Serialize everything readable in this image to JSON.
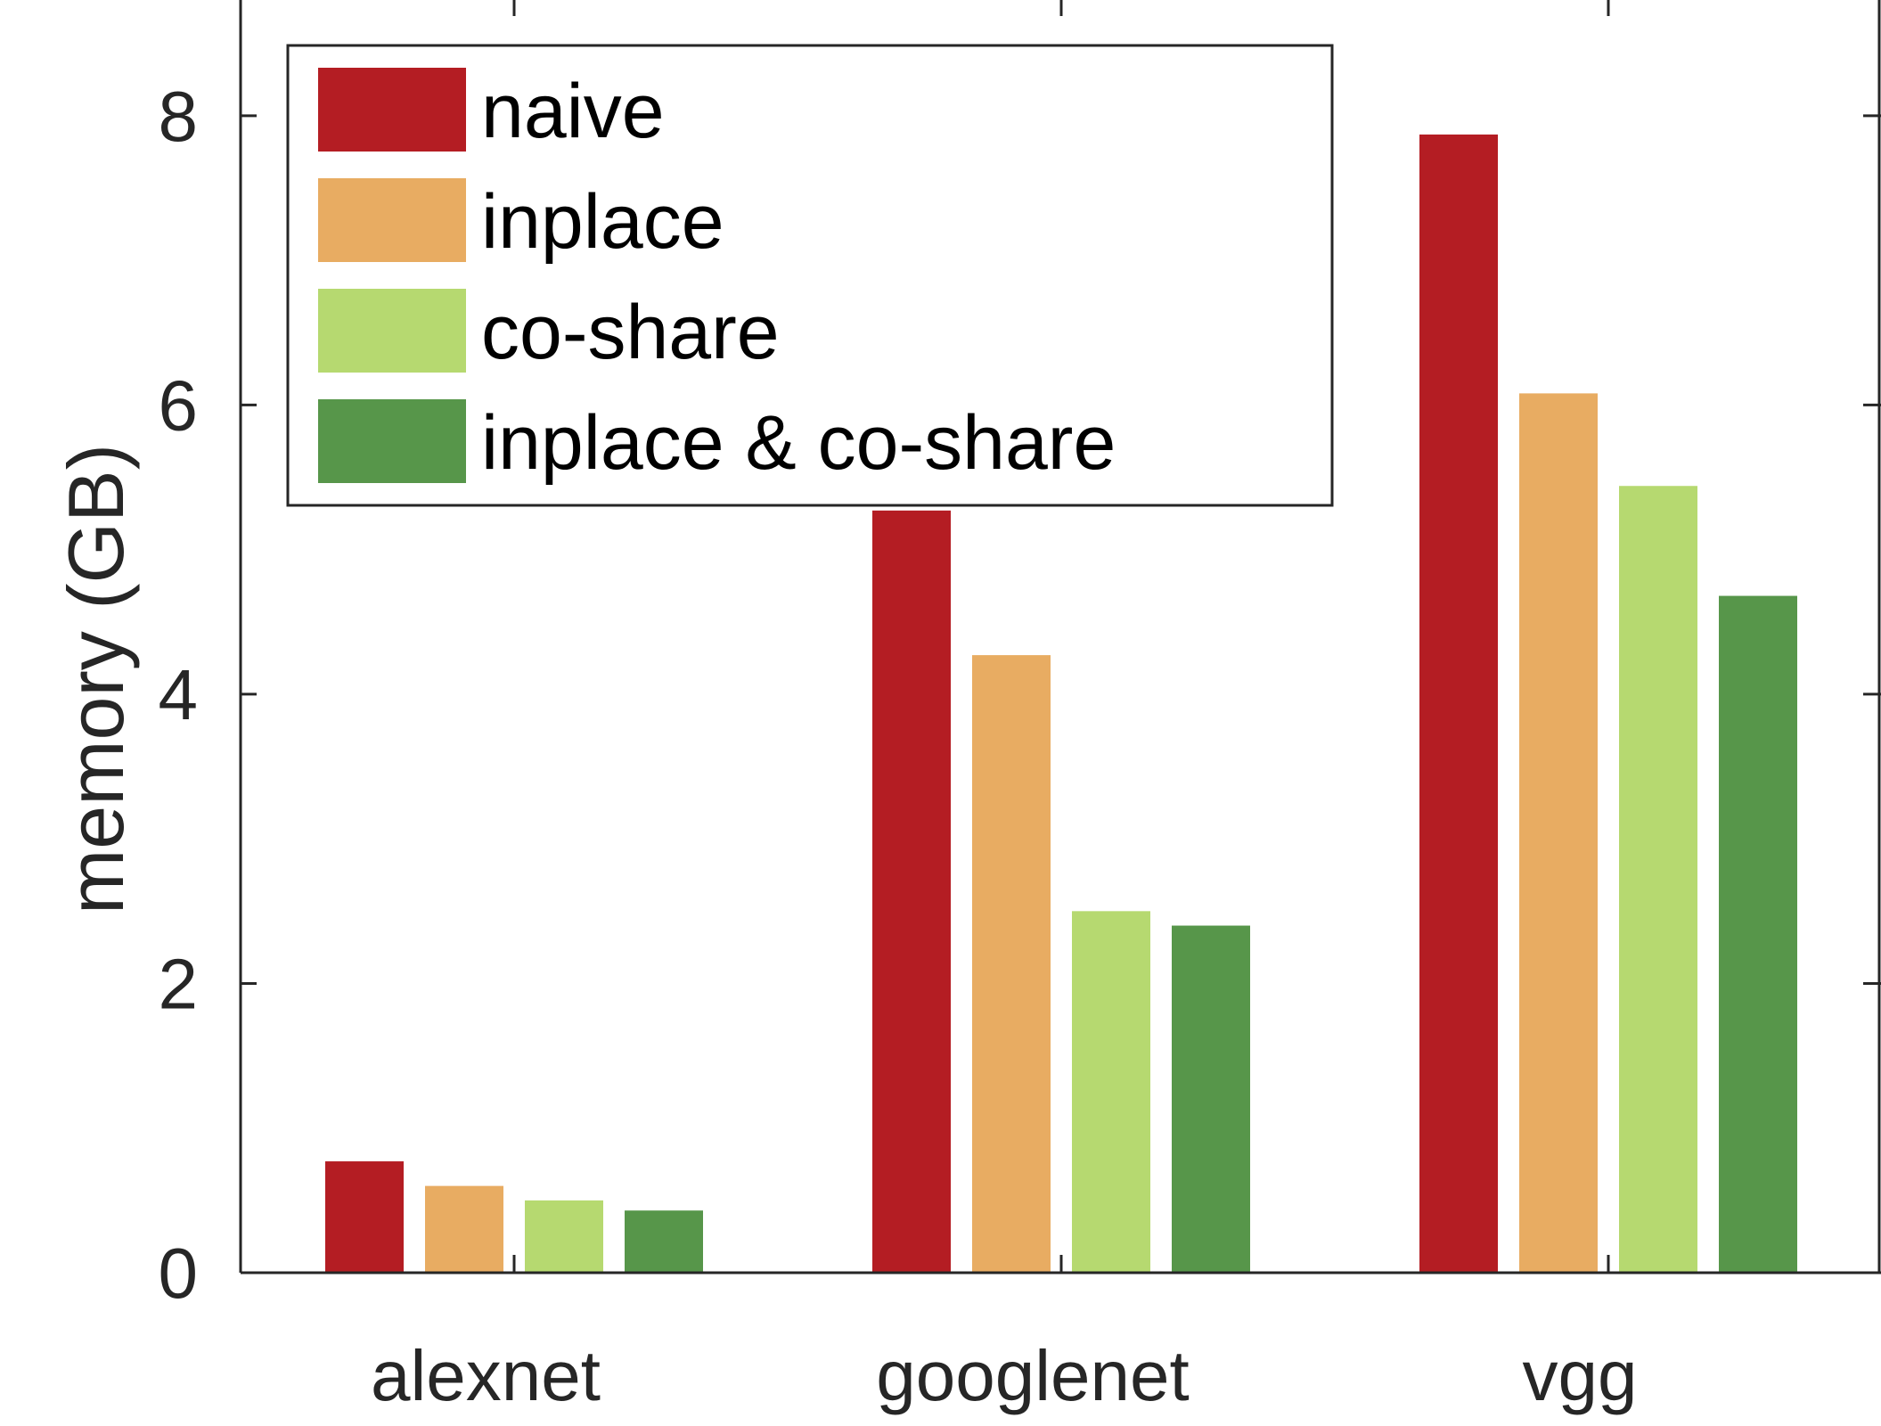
{
  "chart_data": {
    "type": "bar",
    "title": "",
    "xlabel": "",
    "ylabel": "memory (GB)",
    "categories": [
      "alexnet",
      "googlenet",
      "vgg"
    ],
    "ylim": [
      0,
      8.8
    ],
    "yticks": [
      0,
      2,
      4,
      6,
      8
    ],
    "series": [
      {
        "name": "naive",
        "color": "#b41d23",
        "values": [
          0.77,
          5.27,
          7.87
        ]
      },
      {
        "name": "inplace",
        "color": "#e8ac62",
        "values": [
          0.6,
          4.27,
          6.08
        ]
      },
      {
        "name": "co-share",
        "color": "#b6d970",
        "values": [
          0.5,
          2.5,
          5.44
        ]
      },
      {
        "name": "inplace & co-share",
        "color": "#57964a",
        "values": [
          0.43,
          2.4,
          4.68
        ]
      }
    ],
    "legend_position": "top-left",
    "grid": false
  }
}
